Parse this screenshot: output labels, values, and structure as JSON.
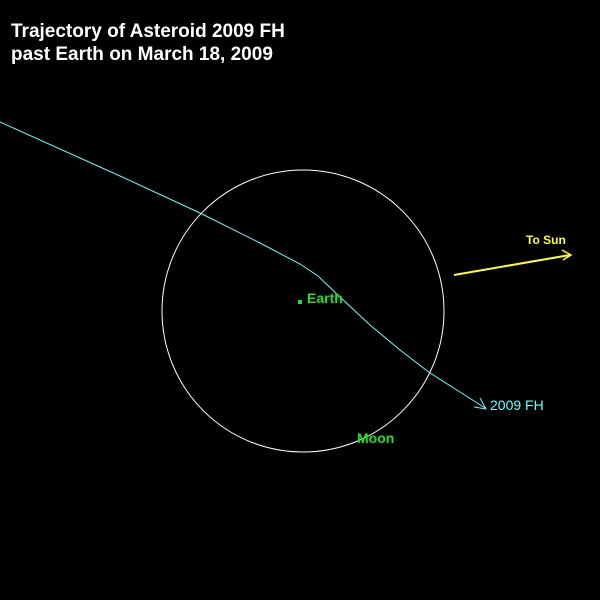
{
  "title": {
    "line1": "Trajectory of Asteroid 2009 FH",
    "line2": "past Earth on March 18, 2009",
    "color": "#ffffff"
  },
  "earth": {
    "label": "Earth",
    "color": "#22e022",
    "marker": "earth-dot"
  },
  "moon": {
    "label": "Moon",
    "color": "#22e022",
    "orbit_color": "#ffffff"
  },
  "asteroid": {
    "label": "2009 FH",
    "color": "#66ffff",
    "arrow": "arrow-right-down-icon"
  },
  "sun": {
    "label": "To Sun",
    "color": "#ffff22",
    "arrow": "arrow-right-icon"
  },
  "background": "#000000"
}
